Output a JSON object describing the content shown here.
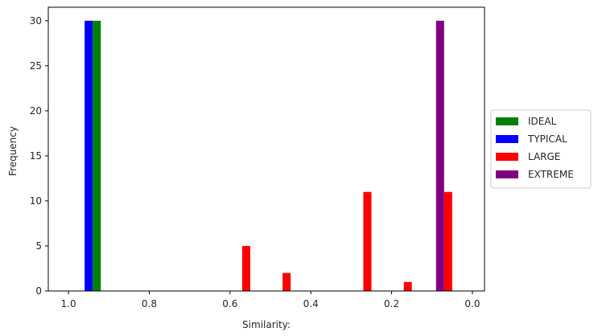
{
  "chart_data": {
    "type": "bar",
    "xlabel": "Similarity:",
    "ylabel": "Frequency",
    "xlim": [
      1.05,
      -0.03
    ],
    "ylim": [
      0,
      31.5
    ],
    "x_ticks": [
      1.0,
      0.8,
      0.6,
      0.4,
      0.2,
      0.0
    ],
    "x_tick_labels": [
      "1.0",
      "0.8",
      "0.6",
      "0.4",
      "0.2",
      "0.0"
    ],
    "y_ticks": [
      0,
      5,
      10,
      15,
      20,
      25,
      30
    ],
    "y_tick_labels": [
      "0",
      "5",
      "10",
      "15",
      "20",
      "25",
      "30"
    ],
    "bar_width": 0.02,
    "legend_position": "right",
    "grid": false,
    "series": [
      {
        "name": "IDEAL",
        "color": "#008000",
        "bars": [
          {
            "x": 0.93,
            "y": 30
          }
        ]
      },
      {
        "name": "TYPICAL",
        "color": "#0000ff",
        "bars": [
          {
            "x": 0.95,
            "y": 30
          }
        ]
      },
      {
        "name": "LARGE",
        "color": "#ff0000",
        "bars": [
          {
            "x": 0.56,
            "y": 5
          },
          {
            "x": 0.46,
            "y": 2
          },
          {
            "x": 0.26,
            "y": 11
          },
          {
            "x": 0.16,
            "y": 1
          },
          {
            "x": 0.06,
            "y": 11
          }
        ]
      },
      {
        "name": "EXTREME",
        "color": "#800080",
        "bars": [
          {
            "x": 0.08,
            "y": 30
          }
        ]
      }
    ]
  }
}
